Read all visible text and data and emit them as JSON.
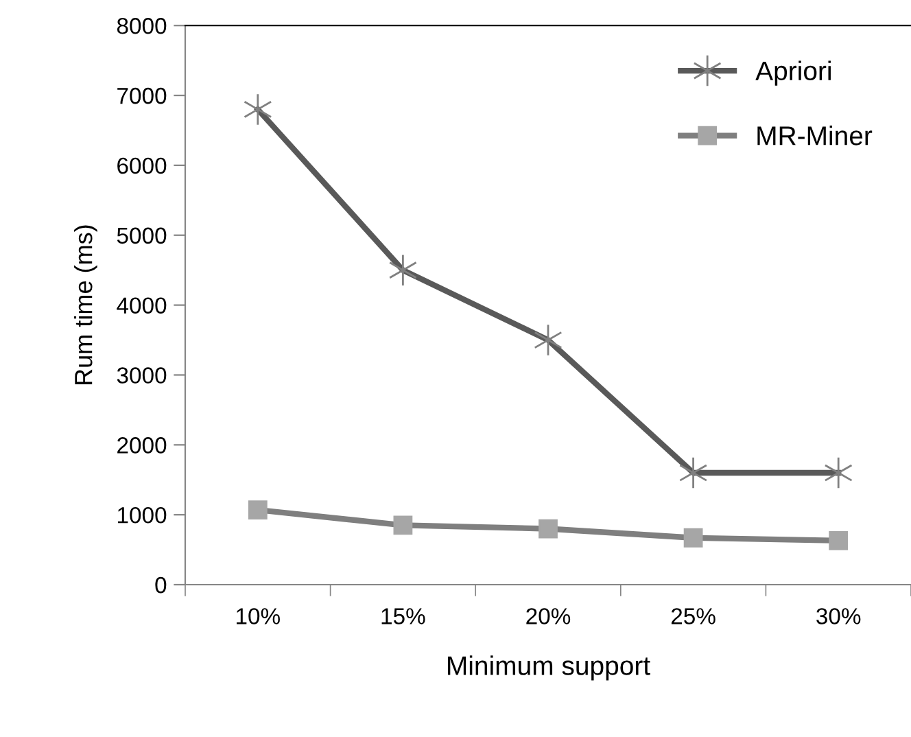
{
  "chart_data": {
    "type": "line",
    "xlabel": "Minimum support",
    "ylabel": "Rum time (ms)",
    "categories": [
      "10%",
      "15%",
      "20%",
      "25%",
      "30%"
    ],
    "series": [
      {
        "name": "Apriori",
        "color": "#595959",
        "marker": "cross",
        "values": [
          6800,
          4500,
          3500,
          1600,
          1600
        ]
      },
      {
        "name": "MR-Miner",
        "color": "#7f7f7f",
        "marker": "square",
        "values": [
          1070,
          850,
          800,
          670,
          630
        ]
      }
    ],
    "ylim": [
      0,
      8000
    ],
    "yticks": [
      0,
      1000,
      2000,
      3000,
      4000,
      5000,
      6000,
      7000,
      8000
    ],
    "grid": false,
    "legend": "top right",
    "line_style": "solid"
  }
}
